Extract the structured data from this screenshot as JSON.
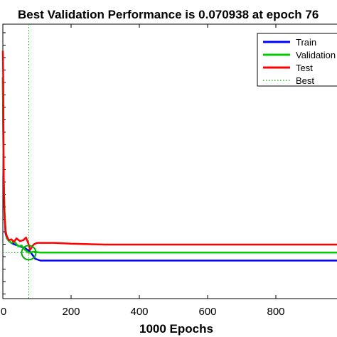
{
  "chart_data": {
    "type": "line",
    "title": "Best Validation Performance is 0.070938 at epoch 76",
    "xlabel": "1000 Epochs",
    "ylabel": "",
    "xlim": [
      0,
      1000
    ],
    "ylim": [
      0.045,
      0.2
    ],
    "x_ticks": [
      0,
      200,
      400,
      600,
      800
    ],
    "x_tick_labels": [
      "0",
      "200",
      "400",
      "600",
      "800"
    ],
    "legend_position": "top-right",
    "colors": {
      "train": "#0000ff",
      "validation": "#00cc00",
      "test": "#ff0000",
      "best": "#00aa00"
    },
    "series": [
      {
        "name": "Train",
        "color": "#0000ff",
        "x": [
          0,
          2,
          5,
          8,
          12,
          18,
          25,
          35,
          50,
          65,
          80,
          95,
          110,
          150,
          200,
          300,
          500,
          700,
          1000
        ],
        "y": [
          0.17,
          0.115,
          0.092,
          0.082,
          0.079,
          0.0775,
          0.0765,
          0.0755,
          0.0745,
          0.0735,
          0.0715,
          0.0675,
          0.0665,
          0.0665,
          0.0665,
          0.0665,
          0.0665,
          0.0665,
          0.0665
        ]
      },
      {
        "name": "Validation",
        "color": "#00cc00",
        "x": [
          0,
          2,
          5,
          8,
          12,
          18,
          25,
          35,
          45,
          55,
          65,
          76,
          90,
          110,
          150,
          200,
          300,
          500,
          700,
          1000
        ],
        "y": [
          0.17,
          0.118,
          0.094,
          0.084,
          0.079,
          0.0775,
          0.0765,
          0.077,
          0.0745,
          0.075,
          0.0725,
          0.0709,
          0.0715,
          0.071,
          0.071,
          0.071,
          0.071,
          0.071,
          0.071,
          0.071
        ]
      },
      {
        "name": "Test",
        "color": "#ff0000",
        "x": [
          0,
          1,
          2,
          3,
          5,
          8,
          12,
          18,
          25,
          32,
          40,
          50,
          60,
          68,
          75,
          80,
          90,
          100,
          150,
          200,
          300,
          500,
          700,
          1000
        ],
        "y": [
          0.185,
          0.17,
          0.13,
          0.105,
          0.092,
          0.083,
          0.08,
          0.078,
          0.0785,
          0.077,
          0.079,
          0.0775,
          0.078,
          0.0795,
          0.076,
          0.0725,
          0.0755,
          0.0765,
          0.0765,
          0.076,
          0.0755,
          0.0755,
          0.0755,
          0.0755
        ]
      },
      {
        "name": "Best",
        "color": "#00aa00",
        "style": "dotted",
        "vertical_x": 76,
        "horizontal_y": 0.070938
      }
    ],
    "best_point": {
      "x": 76,
      "y": 0.070938
    },
    "grid": false
  }
}
